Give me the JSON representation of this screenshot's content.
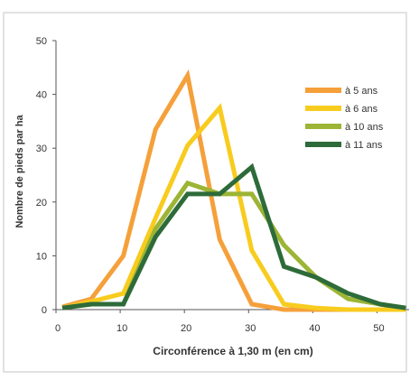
{
  "chart_data": {
    "type": "line",
    "title": "",
    "xlabel": "Circonférence à 1,30 m (en cm)",
    "ylabel": "Nombre de pieds par ha",
    "xlim": [
      0,
      55
    ],
    "ylim": [
      0,
      50
    ],
    "xticks": [
      0,
      10,
      20,
      30,
      40,
      50
    ],
    "yticks": [
      0,
      10,
      20,
      30,
      40,
      50
    ],
    "grid": false,
    "legend_position": "top-right",
    "series": [
      {
        "name": "à 5 ans",
        "color": "#f5a03a",
        "points": [
          [
            1,
            0.5
          ],
          [
            5.5,
            2
          ],
          [
            10.5,
            10
          ],
          [
            15.5,
            33.5
          ],
          [
            20.5,
            43.5
          ],
          [
            25.5,
            13
          ],
          [
            30.5,
            1
          ],
          [
            35.5,
            0
          ],
          [
            40,
            0
          ],
          [
            45,
            0
          ],
          [
            50,
            0
          ],
          [
            54.5,
            0
          ]
        ]
      },
      {
        "name": "à 6 ans",
        "color": "#f8cc1e",
        "points": [
          [
            1,
            0.3
          ],
          [
            5.5,
            1.5
          ],
          [
            10.5,
            3
          ],
          [
            15.5,
            17
          ],
          [
            20.5,
            30.5
          ],
          [
            25.5,
            37.5
          ],
          [
            30.5,
            11
          ],
          [
            35.5,
            1
          ],
          [
            40.5,
            0.3
          ],
          [
            45.5,
            0
          ],
          [
            50.5,
            0
          ],
          [
            54.5,
            0
          ]
        ]
      },
      {
        "name": "à 10 ans",
        "color": "#9cb535",
        "points": [
          [
            1,
            0.3
          ],
          [
            5.5,
            1
          ],
          [
            10.5,
            1
          ],
          [
            15.5,
            15
          ],
          [
            20.5,
            23.5
          ],
          [
            25.5,
            21.5
          ],
          [
            30.5,
            21.5
          ],
          [
            35.5,
            12
          ],
          [
            40.5,
            6
          ],
          [
            45.5,
            2
          ],
          [
            50.5,
            1
          ],
          [
            54.5,
            0.3
          ]
        ]
      },
      {
        "name": "à 11 ans",
        "color": "#2e6b3a",
        "points": [
          [
            1,
            0.3
          ],
          [
            5.5,
            1
          ],
          [
            10.5,
            1
          ],
          [
            15.5,
            13.5
          ],
          [
            20.5,
            21.5
          ],
          [
            25.5,
            21.5
          ],
          [
            30.5,
            26.5
          ],
          [
            35.5,
            8
          ],
          [
            40.5,
            6
          ],
          [
            45.5,
            3
          ],
          [
            50.5,
            1
          ],
          [
            54.5,
            0.3
          ]
        ]
      }
    ]
  }
}
